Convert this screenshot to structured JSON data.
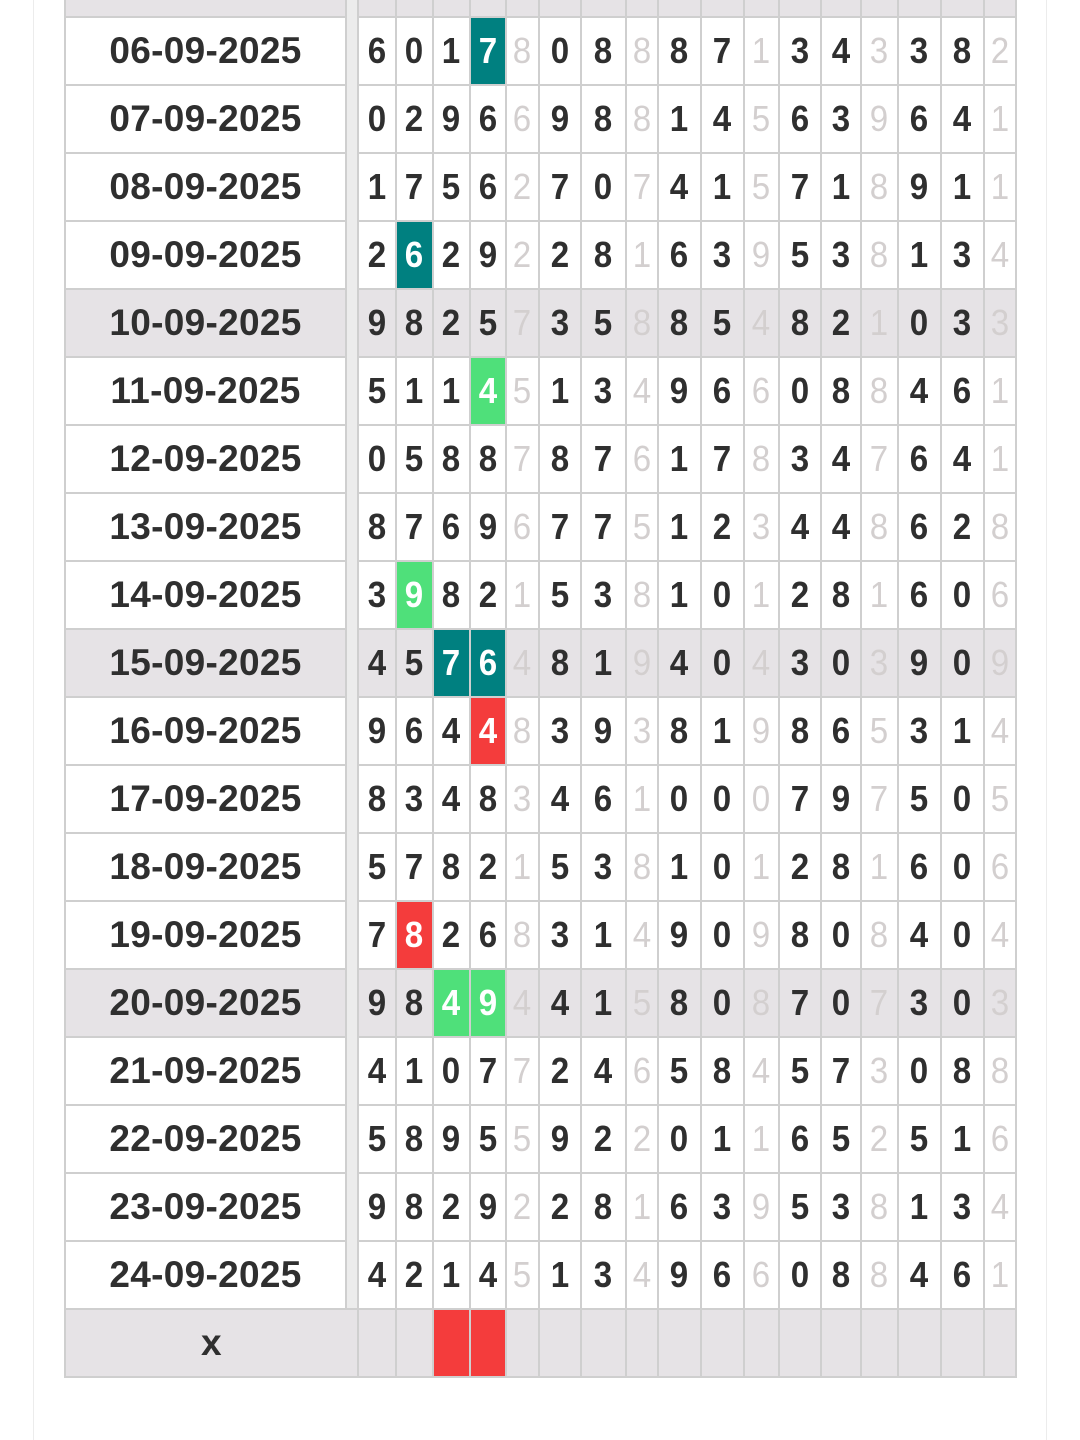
{
  "colors": {
    "teal": "#008080",
    "green": "#4fe07a",
    "red": "#f43c3c",
    "shade": "#e6e3e6",
    "fade": "#d3cfcf"
  },
  "rows": [
    {
      "date": "",
      "digits": "                 ",
      "shaded": true,
      "highlights": []
    },
    {
      "date": "06-09-2025",
      "digits": "60178088871343382",
      "shaded": false,
      "highlights": [
        {
          "col": 3,
          "color": "teal"
        }
      ]
    },
    {
      "date": "07-09-2025",
      "digits": "02966988145639641",
      "shaded": false,
      "highlights": []
    },
    {
      "date": "08-09-2025",
      "digits": "17562707415718911",
      "shaded": false,
      "highlights": []
    },
    {
      "date": "09-09-2025",
      "digits": "26292281639538134",
      "shaded": false,
      "highlights": [
        {
          "col": 1,
          "color": "teal"
        }
      ]
    },
    {
      "date": "10-09-2025",
      "digits": "98257358854821033",
      "shaded": true,
      "highlights": []
    },
    {
      "date": "11-09-2025",
      "digits": "51145134966088461",
      "shaded": false,
      "highlights": [
        {
          "col": 3,
          "color": "green"
        }
      ]
    },
    {
      "date": "12-09-2025",
      "digits": "05887876178347641",
      "shaded": false,
      "highlights": []
    },
    {
      "date": "13-09-2025",
      "digits": "87696775123448628",
      "shaded": false,
      "highlights": []
    },
    {
      "date": "14-09-2025",
      "digits": "39821538101281606",
      "shaded": false,
      "highlights": [
        {
          "col": 1,
          "color": "green"
        }
      ]
    },
    {
      "date": "15-09-2025",
      "digits": "45764819404303909",
      "shaded": true,
      "highlights": [
        {
          "col": 2,
          "color": "teal"
        },
        {
          "col": 3,
          "color": "teal"
        }
      ]
    },
    {
      "date": "16-09-2025",
      "digits": "96448393819865314",
      "shaded": false,
      "highlights": [
        {
          "col": 3,
          "color": "red"
        }
      ]
    },
    {
      "date": "17-09-2025",
      "digits": "83483461000797505",
      "shaded": false,
      "highlights": []
    },
    {
      "date": "18-09-2025",
      "digits": "57821538101281606",
      "shaded": false,
      "highlights": []
    },
    {
      "date": "19-09-2025",
      "digits": "78268314909808404",
      "shaded": false,
      "highlights": [
        {
          "col": 1,
          "color": "red"
        }
      ]
    },
    {
      "date": "20-09-2025",
      "digits": "98494415808707303",
      "shaded": true,
      "highlights": [
        {
          "col": 2,
          "color": "green"
        },
        {
          "col": 3,
          "color": "green"
        }
      ]
    },
    {
      "date": "21-09-2025",
      "digits": "41077246584573088",
      "shaded": false,
      "highlights": []
    },
    {
      "date": "22-09-2025",
      "digits": "58955922011652516",
      "shaded": false,
      "highlights": []
    },
    {
      "date": "23-09-2025",
      "digits": "98292281639538134",
      "shaded": false,
      "highlights": []
    },
    {
      "date": "24-09-2025",
      "digits": "42145134966088461",
      "shaded": false,
      "highlights": []
    }
  ],
  "footer": {
    "label": "x",
    "highlights": [
      {
        "col": 2,
        "color": "red"
      },
      {
        "col": 3,
        "color": "red"
      }
    ]
  }
}
